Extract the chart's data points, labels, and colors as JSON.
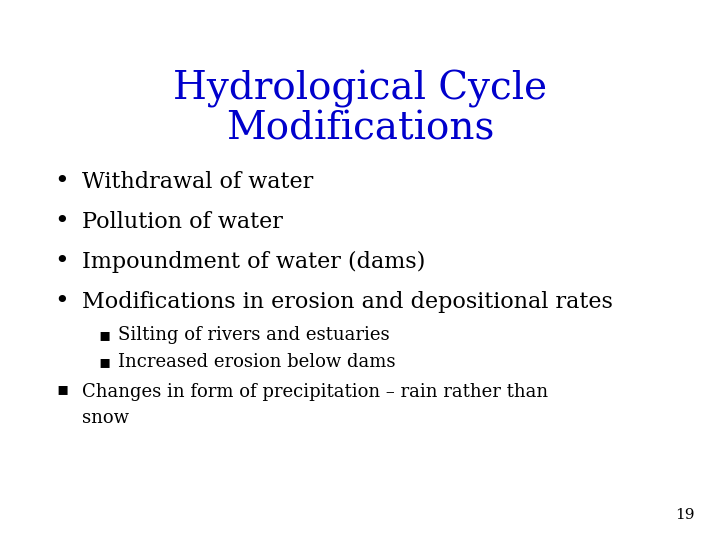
{
  "title_line1": "Hydrological Cycle",
  "title_line2": "Modifications",
  "title_color": "#0000CC",
  "title_fontsize": 28,
  "background_color": "#FFFFFF",
  "bullet_color": "#000000",
  "bullet_fontsize": 16,
  "sub_bullet_fontsize": 13,
  "page_number_fontsize": 11,
  "bullets": [
    "Withdrawal of water",
    "Pollution of water",
    "Impoundment of water (dams)",
    "Modifications in erosion and depositional rates"
  ],
  "sub_bullets": [
    "Silting of rivers and estuaries",
    "Increased erosion below dams"
  ],
  "bottom_bullet_line1": "Changes in form of precipitation – rain rather than",
  "bottom_bullet_line2": "snow",
  "page_number": "19",
  "font_family": "serif"
}
